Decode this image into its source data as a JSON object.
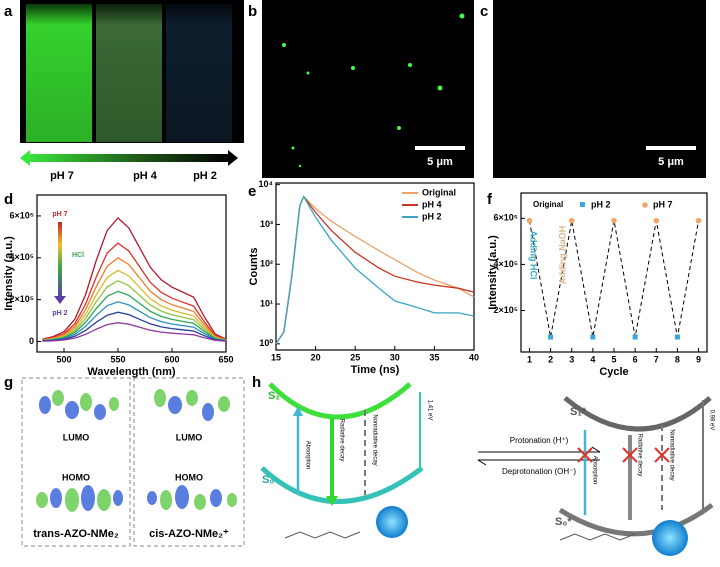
{
  "panel_labels": [
    "a",
    "b",
    "c",
    "d",
    "e",
    "f",
    "g",
    "h"
  ],
  "panel_a": {
    "labels": [
      "pH 7",
      "pH 4",
      "pH 2"
    ]
  },
  "panel_b": {
    "scale_bar": "5 μm"
  },
  "panel_c": {
    "scale_bar": "5 μm"
  },
  "chart_data": [
    {
      "type": "line",
      "xlabel": "Wavelength (nm)",
      "ylabel": "Intensity (a.u.)",
      "annotations": [
        "pH 7",
        "HCl",
        "pH 2"
      ],
      "xlim": [
        475,
        650
      ],
      "xticks": [
        500,
        550,
        600,
        650
      ],
      "ylim": [
        -50000,
        700000
      ],
      "yticks": [
        0,
        {
          "value": 200000,
          "label": "2×10⁵"
        },
        {
          "value": 400000,
          "label": "4×10⁵"
        },
        {
          "value": 600000,
          "label": "6×10⁵"
        }
      ],
      "x": [
        480,
        490,
        500,
        510,
        520,
        530,
        540,
        550,
        560,
        570,
        580,
        590,
        600,
        610,
        620,
        630,
        640,
        650
      ],
      "series": [
        {
          "color": "#b2182b",
          "values": [
            11800,
            23600,
            47200,
            106200,
            224200,
            389400,
            531000,
            590000,
            542800,
            448400,
            354000,
            295000,
            259600,
            236000,
            212400,
            118000,
            35400,
            11800
          ]
        },
        {
          "color": "#e0302a",
          "values": [
            9400,
            18800,
            37600,
            84600,
            178600,
            310200,
            423000,
            470000,
            432400,
            357200,
            282000,
            235000,
            206800,
            188000,
            169200,
            94000,
            28200,
            9400
          ]
        },
        {
          "color": "#f07b2c",
          "values": [
            8000,
            16000,
            32000,
            72000,
            152000,
            264000,
            360000,
            400000,
            368000,
            304000,
            240000,
            200000,
            176000,
            160000,
            144000,
            80000,
            24000,
            8000
          ]
        },
        {
          "color": "#d9b92e",
          "values": [
            6800,
            13600,
            27200,
            61200,
            129200,
            224400,
            306000,
            340000,
            312800,
            258400,
            204000,
            170000,
            149600,
            136000,
            122400,
            68000,
            20400,
            6800
          ]
        },
        {
          "color": "#8cc63c",
          "values": [
            5800,
            11600,
            23200,
            52200,
            110200,
            191400,
            261000,
            290000,
            266800,
            220400,
            174000,
            145000,
            127600,
            116000,
            104400,
            58000,
            17400,
            5800
          ]
        },
        {
          "color": "#2fa55a",
          "values": [
            4800,
            9600,
            19200,
            43200,
            91200,
            158400,
            216000,
            240000,
            220800,
            182400,
            144000,
            120000,
            105600,
            96000,
            86400,
            48000,
            14400,
            4800
          ]
        },
        {
          "color": "#2e8fbf",
          "values": [
            3800,
            7600,
            15200,
            34200,
            72200,
            125400,
            171000,
            190000,
            174800,
            144400,
            114000,
            95000,
            83600,
            76000,
            68400,
            38000,
            11400,
            3800
          ]
        },
        {
          "color": "#2b3e9c",
          "values": [
            2800,
            5600,
            11200,
            25200,
            53200,
            92400,
            126000,
            140000,
            128800,
            106400,
            84000,
            70000,
            61600,
            56000,
            50400,
            28000,
            8400,
            2800
          ]
        },
        {
          "color": "#8e3a9e",
          "values": [
            1800,
            3600,
            7200,
            16200,
            34200,
            59400,
            81000,
            90000,
            82800,
            68400,
            54000,
            45000,
            39600,
            36000,
            32400,
            18000,
            5400,
            1800
          ]
        }
      ]
    },
    {
      "type": "line",
      "xlabel": "Time (ns)",
      "ylabel": "Counts",
      "ylog": true,
      "legend": "upper right",
      "xlim": [
        15,
        40
      ],
      "xticks": [
        15,
        20,
        25,
        30,
        35,
        40
      ],
      "ylim": [
        0.7,
        11000
      ],
      "yticks": [
        {
          "value": 1,
          "label": "10⁰"
        },
        {
          "value": 10,
          "label": "10¹"
        },
        {
          "value": 100,
          "label": "10²"
        },
        {
          "value": 1000,
          "label": "10³"
        },
        {
          "value": 10000,
          "label": "10⁴"
        }
      ],
      "x": [
        15,
        16,
        17,
        18,
        18.5,
        20,
        22,
        25,
        28,
        30,
        33,
        35,
        38,
        40
      ],
      "series": [
        {
          "name": "Original",
          "color": "#e8a36a",
          "values": [
            1,
            2,
            50,
            3000,
            5000,
            2500,
            1200,
            500,
            220,
            130,
            60,
            40,
            25,
            15
          ]
        },
        {
          "name": "pH 4",
          "color": "#c8341f",
          "values": [
            1,
            2,
            50,
            3000,
            5000,
            2000,
            700,
            200,
            80,
            50,
            35,
            30,
            25,
            20
          ]
        },
        {
          "name": "pH 2",
          "color": "#3aa6c4",
          "values": [
            1,
            2,
            50,
            3000,
            5000,
            1500,
            400,
            80,
            25,
            12,
            8,
            6,
            6,
            5
          ]
        }
      ]
    },
    {
      "type": "scatter",
      "xlabel": "Cycle",
      "ylabel": "Intensity (a.u.)",
      "legend": "top",
      "line_style": "dashed",
      "annotations": [
        "Original",
        "Adding HCl",
        "Adding NaOH"
      ],
      "xlim": [
        0.6,
        9.4
      ],
      "xticks": [
        1,
        2,
        3,
        4,
        5,
        6,
        7,
        8,
        9
      ],
      "ylim": [
        20000,
        710000
      ],
      "yticks": [
        {
          "value": 200000,
          "label": "2×10⁵"
        },
        {
          "value": 400000,
          "label": "4×10⁵"
        },
        {
          "value": 600000,
          "label": "6×10⁵"
        }
      ],
      "series": [
        {
          "name": "pH 2",
          "color": "#3aa6d9",
          "x": [
            2,
            4,
            6,
            8
          ],
          "values": [
            85000,
            85000,
            85000,
            85000
          ]
        },
        {
          "name": "pH 7",
          "color": "#f4a66a",
          "x": [
            1,
            3,
            5,
            7,
            9
          ],
          "values": [
            590000,
            590000,
            590000,
            590000,
            590000
          ]
        }
      ]
    }
  ],
  "panel_g": {
    "left": {
      "lumo": "LUMO",
      "homo": "HOMO",
      "name": "trans-AZO-NMe₂"
    },
    "right": {
      "lumo": "LUMO",
      "homo": "HOMO",
      "name": "cis-AZO-NMe₂⁺"
    }
  },
  "panel_h": {
    "s1": "S₁",
    "s0": "S₀",
    "absorption": "Absorption",
    "radiative": "Radiative decay",
    "nonradiative": "Nonradiative decay",
    "gap": "1.41 eV",
    "protonation": "Protonation (H⁺)",
    "deprotonation": "Deprotonation (OH⁻)",
    "s1_star": "S₁*",
    "s0_star": "S₀*",
    "absorption_2": "Absorption",
    "radiative_2": "Radiative decay",
    "nonradiative_2": "Nonradiative decay",
    "gap_2": "0.98 eV"
  }
}
